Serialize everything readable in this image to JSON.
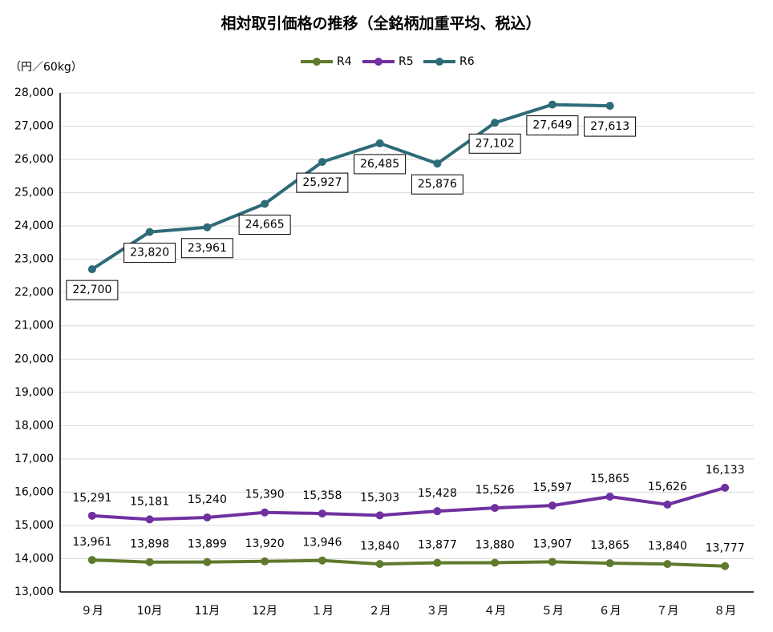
{
  "chart_data": {
    "type": "line",
    "title": "相対取引価格の推移（全銘柄加重平均、税込）",
    "y_axis_label": "（円／60kg）",
    "categories": [
      "９月",
      "10月",
      "11月",
      "12月",
      "１月",
      "２月",
      "３月",
      "４月",
      "５月",
      "６月",
      "７月",
      "８月"
    ],
    "series": [
      {
        "name": "R4",
        "color": "#5f7a2c",
        "values": [
          13961,
          13898,
          13899,
          13920,
          13946,
          13840,
          13877,
          13880,
          13907,
          13865,
          13840,
          13777
        ],
        "value_labels": [
          "13,961",
          "13,898",
          "13,899",
          "13,920",
          "13,946",
          "13,840",
          "13,877",
          "13,880",
          "13,907",
          "13,865",
          "13,840",
          "13,777"
        ]
      },
      {
        "name": "R5",
        "color": "#7030a0",
        "values": [
          15291,
          15181,
          15240,
          15390,
          15358,
          15303,
          15428,
          15526,
          15597,
          15865,
          15626,
          16133
        ],
        "value_labels": [
          "15,291",
          "15,181",
          "15,240",
          "15,390",
          "15,358",
          "15,303",
          "15,428",
          "15,526",
          "15,597",
          "15,865",
          "15,626",
          "16,133"
        ]
      },
      {
        "name": "R6",
        "color": "#2e6b78",
        "values": [
          22700,
          23820,
          23961,
          24665,
          25927,
          26485,
          25876,
          27102,
          27649,
          27613,
          null,
          null
        ],
        "value_labels": [
          "22,700",
          "23,820",
          "23,961",
          "24,665",
          "25,927",
          "26,485",
          "25,876",
          "27,102",
          "27,649",
          "27,613",
          null,
          null
        ]
      }
    ],
    "ylim": [
      13000,
      28000
    ],
    "yticks": [
      {
        "value": 13000,
        "label": "13,000"
      },
      {
        "value": 14000,
        "label": "14,000"
      },
      {
        "value": 15000,
        "label": "15,000"
      },
      {
        "value": 16000,
        "label": "16,000"
      },
      {
        "value": 17000,
        "label": "17,000"
      },
      {
        "value": 18000,
        "label": "18,000"
      },
      {
        "value": 19000,
        "label": "19,000"
      },
      {
        "value": 20000,
        "label": "20,000"
      },
      {
        "value": 21000,
        "label": "21,000"
      },
      {
        "value": 22000,
        "label": "22,000"
      },
      {
        "value": 23000,
        "label": "23,000"
      },
      {
        "value": 24000,
        "label": "24,000"
      },
      {
        "value": 25000,
        "label": "25,000"
      },
      {
        "value": 26000,
        "label": "26,000"
      },
      {
        "value": 27000,
        "label": "27,000"
      },
      {
        "value": 28000,
        "label": "28,000"
      }
    ],
    "grid": true,
    "legend": "top"
  }
}
